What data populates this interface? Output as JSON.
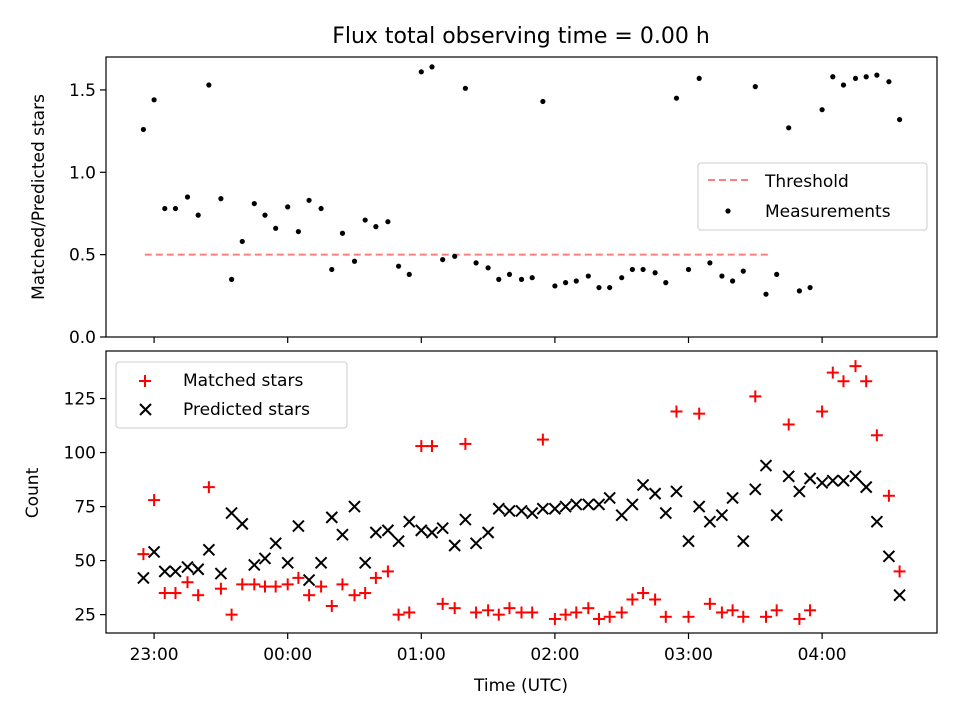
{
  "figure": {
    "title": "Flux total observing time = 0.00 h",
    "xlabel": "Time (UTC)"
  },
  "chart_data": [
    {
      "type": "scatter",
      "panel": "top",
      "ylabel": "Matched/Predicted stars",
      "ylim": [
        0,
        1.7
      ],
      "yticks": [
        0.0,
        0.5,
        1.0,
        1.5
      ],
      "ytick_labels": [
        "0.0",
        "0.5",
        "1.0",
        "1.5"
      ],
      "xlim": [
        -0.36,
        5.86
      ],
      "legend": {
        "placement": "center-right",
        "entries": [
          "Threshold",
          "Measurements"
        ]
      },
      "threshold": {
        "name": "Threshold",
        "y": 0.5,
        "x_range": [
          -0.07,
          4.6
        ],
        "color": "#ff7f7f"
      },
      "series": [
        {
          "name": "Measurements",
          "color": "#000000",
          "x": [
            -0.08,
            0.0,
            0.08,
            0.16,
            0.25,
            0.33,
            0.41,
            0.5,
            0.58,
            0.66,
            0.75,
            0.83,
            0.91,
            1.0,
            1.08,
            1.16,
            1.25,
            1.33,
            1.41,
            1.5,
            1.58,
            1.66,
            1.75,
            1.83,
            1.91,
            2.0,
            2.08,
            2.16,
            2.25,
            2.33,
            2.41,
            2.5,
            2.58,
            2.66,
            2.75,
            2.83,
            2.91,
            3.0,
            3.08,
            3.16,
            3.25,
            3.33,
            3.41,
            3.5,
            3.58,
            3.66,
            3.75,
            3.83,
            3.91,
            4.0,
            4.08,
            4.16,
            4.25,
            4.33,
            4.41,
            4.5,
            4.58,
            4.66,
            4.75,
            4.83,
            4.91,
            5.0,
            5.08,
            5.16,
            5.25,
            5.33,
            5.41,
            5.5,
            5.58
          ],
          "y": [
            1.26,
            1.44,
            0.78,
            0.78,
            0.85,
            0.74,
            1.53,
            0.84,
            0.35,
            0.58,
            0.81,
            0.74,
            0.66,
            0.79,
            0.64,
            0.83,
            0.78,
            0.41,
            0.63,
            0.46,
            0.71,
            0.67,
            0.7,
            0.43,
            0.38,
            1.61,
            1.64,
            0.47,
            0.49,
            1.51,
            0.45,
            0.42,
            0.35,
            0.38,
            0.35,
            0.36,
            1.43,
            0.31,
            0.33,
            0.34,
            0.37,
            0.3,
            0.3,
            0.36,
            0.41,
            0.41,
            0.39,
            0.33,
            1.45,
            0.41,
            1.57,
            0.45,
            0.37,
            0.34,
            0.4,
            1.52,
            0.26,
            0.38,
            1.27,
            0.28,
            0.3,
            1.38,
            1.58,
            1.53,
            1.57,
            1.58,
            1.59,
            1.55,
            1.32
          ]
        }
      ]
    },
    {
      "type": "scatter",
      "panel": "bottom",
      "ylabel": "Count",
      "xlabel": "Time (UTC)",
      "ylim": [
        16.5,
        147
      ],
      "yticks": [
        25,
        50,
        75,
        100,
        125
      ],
      "ytick_labels": [
        "25",
        "50",
        "75",
        "100",
        "125"
      ],
      "xlim": [
        -0.36,
        5.86
      ],
      "xticks": [
        0,
        1,
        2,
        3,
        4,
        5
      ],
      "xtick_labels": [
        "23:00",
        "00:00",
        "01:00",
        "02:00",
        "03:00",
        "04:00"
      ],
      "legend": {
        "placement": "top-left",
        "entries": [
          "Matched stars",
          "Predicted stars"
        ]
      },
      "series": [
        {
          "name": "Matched stars",
          "marker": "+",
          "color": "#ff0000",
          "x": [
            -0.08,
            0.0,
            0.08,
            0.16,
            0.25,
            0.33,
            0.41,
            0.5,
            0.58,
            0.66,
            0.75,
            0.83,
            0.91,
            1.0,
            1.08,
            1.16,
            1.25,
            1.33,
            1.41,
            1.5,
            1.58,
            1.66,
            1.75,
            1.83,
            1.91,
            2.0,
            2.08,
            2.16,
            2.25,
            2.33,
            2.41,
            2.5,
            2.58,
            2.66,
            2.75,
            2.83,
            2.91,
            3.0,
            3.08,
            3.16,
            3.25,
            3.33,
            3.41,
            3.5,
            3.58,
            3.66,
            3.75,
            3.83,
            3.91,
            4.0,
            4.08,
            4.16,
            4.25,
            4.33,
            4.41,
            4.5,
            4.58,
            4.66,
            4.75,
            4.83,
            4.91,
            5.0,
            5.08,
            5.16,
            5.25,
            5.33,
            5.41,
            5.5,
            5.58
          ],
          "y": [
            53,
            78,
            35,
            35,
            40,
            34,
            84,
            37,
            25,
            39,
            39,
            38,
            38,
            39,
            42,
            34,
            38,
            29,
            39,
            34,
            35,
            42,
            45,
            25,
            26,
            103,
            103,
            30,
            28,
            104,
            26,
            27,
            25,
            28,
            26,
            26,
            106,
            23,
            25,
            26,
            28,
            23,
            24,
            26,
            32,
            35,
            32,
            24,
            119,
            24,
            118,
            30,
            26,
            27,
            24,
            126,
            24,
            27,
            113,
            23,
            27,
            119,
            137,
            133,
            140,
            133,
            108,
            80,
            45
          ]
        },
        {
          "name": "Predicted stars",
          "marker": "x",
          "color": "#000000",
          "x": [
            -0.08,
            0.0,
            0.08,
            0.16,
            0.25,
            0.33,
            0.41,
            0.5,
            0.58,
            0.66,
            0.75,
            0.83,
            0.91,
            1.0,
            1.08,
            1.16,
            1.25,
            1.33,
            1.41,
            1.5,
            1.58,
            1.66,
            1.75,
            1.83,
            1.91,
            2.0,
            2.08,
            2.16,
            2.25,
            2.33,
            2.41,
            2.5,
            2.58,
            2.66,
            2.75,
            2.83,
            2.91,
            3.0,
            3.08,
            3.16,
            3.25,
            3.33,
            3.41,
            3.5,
            3.58,
            3.66,
            3.75,
            3.83,
            3.91,
            4.0,
            4.08,
            4.16,
            4.25,
            4.33,
            4.41,
            4.5,
            4.58,
            4.66,
            4.75,
            4.83,
            4.91,
            5.0,
            5.08,
            5.16,
            5.25,
            5.33,
            5.41,
            5.5,
            5.58
          ],
          "y": [
            42,
            54,
            45,
            45,
            47,
            46,
            55,
            44,
            72,
            67,
            48,
            51,
            58,
            49,
            66,
            41,
            49,
            70,
            62,
            75,
            49,
            63,
            64,
            59,
            68,
            64,
            63,
            65,
            57,
            69,
            58,
            63,
            74,
            73,
            73,
            72,
            74,
            74,
            75,
            76,
            76,
            76,
            79,
            71,
            76,
            85,
            81,
            72,
            82,
            59,
            75,
            68,
            71,
            79,
            59,
            83,
            94,
            71,
            89,
            82,
            88,
            86,
            87,
            87,
            89,
            84,
            68,
            52,
            34
          ]
        }
      ]
    }
  ]
}
